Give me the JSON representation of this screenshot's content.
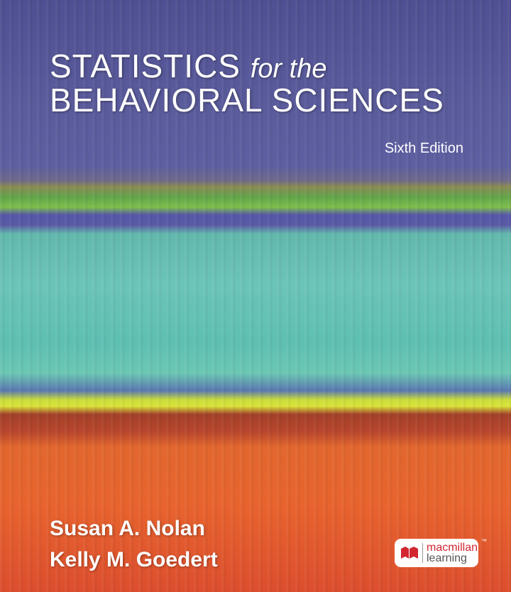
{
  "cover": {
    "title_line1_main": "STATISTICS",
    "title_line1_italic": "for the",
    "title_line2": "BEHAVIORAL SCIENCES",
    "edition": "Sixth Edition",
    "authors": [
      "Susan A. Nolan",
      "Kelly M. Goedert"
    ],
    "publisher": {
      "line1": "macmillan",
      "line2": "learning",
      "trademark": "™",
      "brand_color": "#d22630"
    }
  }
}
